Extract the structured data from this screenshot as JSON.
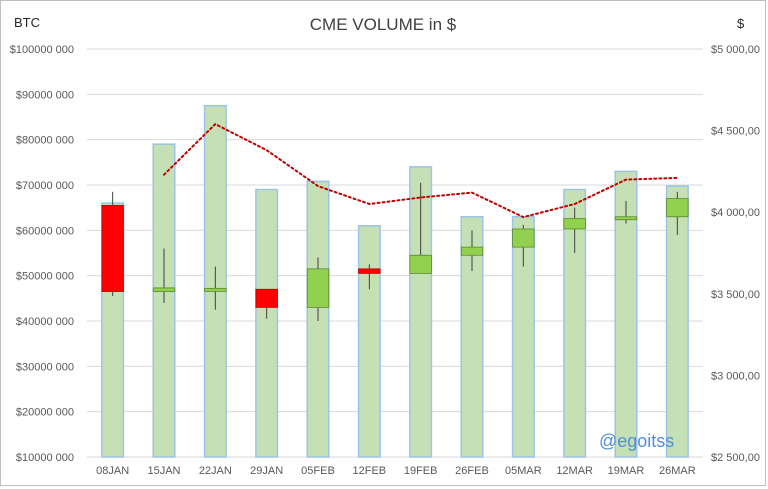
{
  "chart_data": {
    "type": "bar",
    "title": "CME VOLUME in $",
    "left_axis_label": "BTC",
    "right_axis_label": "$",
    "watermark": "@egoitss",
    "categories": [
      "08JAN",
      "15JAN",
      "22JAN",
      "29JAN",
      "05FEB",
      "12FEB",
      "19FEB",
      "26FEB",
      "05MAR",
      "12MAR",
      "19MAR",
      "26MAR"
    ],
    "left_axis": {
      "min": 10000000,
      "max": 100000000,
      "step": 10000000,
      "tick_labels": [
        "$10000 000",
        "$20000 000",
        "$30000 000",
        "$40000 000",
        "$50000 000",
        "$60000 000",
        "$70000 000",
        "$80000 000",
        "$90000 000",
        "$100000 000"
      ]
    },
    "right_axis": {
      "min": 2500,
      "max": 5000,
      "step": 500,
      "tick_labels": [
        "$2 500,00",
        "$3 000,00",
        "$3 500,00",
        "$4 000,00",
        "$4 500,00",
        "$5 000,00"
      ]
    },
    "grid": true,
    "series": [
      {
        "kind": "bar",
        "axis": "left",
        "values": [
          66000000,
          79000000,
          87500000,
          69000000,
          70800000,
          61000000,
          74000000,
          63000000,
          63000000,
          69000000,
          73000000,
          69800000
        ],
        "color": "#c5e0b4",
        "edge": "#9dc3e6"
      },
      {
        "kind": "candlestick",
        "axis": "left",
        "candles": [
          {
            "open": 65500000,
            "close": 46500000,
            "high": 68500000,
            "low": 45500000
          },
          {
            "open": 46500000,
            "close": 47300000,
            "high": 56000000,
            "low": 44000000
          },
          {
            "open": 47000000,
            "close": 47200000,
            "high": 52000000,
            "low": 42500000
          },
          {
            "open": 47000000,
            "close": 43000000,
            "high": 47000000,
            "low": 40500000
          },
          {
            "open": 43000000,
            "close": 51500000,
            "high": 54000000,
            "low": 40000000
          },
          {
            "open": 51500000,
            "close": 50500000,
            "high": 52500000,
            "low": 47000000
          },
          {
            "open": 50500000,
            "close": 54500000,
            "high": 70500000,
            "low": 50500000
          },
          {
            "open": 54500000,
            "close": 56300000,
            "high": 60000000,
            "low": 51000000
          },
          {
            "open": 56300000,
            "close": 60300000,
            "high": 61200000,
            "low": 52000000
          },
          {
            "open": 60300000,
            "close": 62600000,
            "high": 65000000,
            "low": 55000000
          },
          {
            "open": 62600000,
            "close": 63000000,
            "high": 66500000,
            "low": 61500000
          },
          {
            "open": 63000000,
            "close": 67000000,
            "high": 68500000,
            "low": 59000000
          }
        ],
        "up_color": "#92d050",
        "down_color": "#ff0000"
      },
      {
        "kind": "line",
        "axis": "right",
        "style": "dotted",
        "values": [
          null,
          4230,
          4540,
          4380,
          4160,
          4050,
          4090,
          4120,
          3970,
          4050,
          4200,
          4210
        ],
        "color": "#c00000"
      }
    ]
  }
}
